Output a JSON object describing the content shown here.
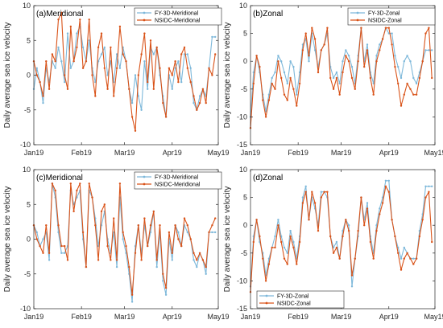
{
  "figure": {
    "ylabel": "Daily average sea ice velocity",
    "x_tick_labels": [
      "Jan19",
      "Feb19",
      "Mar19",
      "Apr19",
      "May19"
    ],
    "colors": {
      "fy3d": "#7DB8DA",
      "nsidc": "#D95319",
      "axis": "#262626"
    }
  },
  "chart_data": [
    {
      "type": "line",
      "title": "(a)Meridional",
      "xlabel": "",
      "ylabel": "Daily average sea ice velocity",
      "xlim": [
        0,
        120
      ],
      "ylim": [
        -10,
        10
      ],
      "yticks": [
        -10,
        -5,
        0,
        5,
        10
      ],
      "xticks": [
        0,
        31,
        59,
        90,
        120
      ],
      "xtick_labels": [
        "Jan19",
        "Feb19",
        "Mar19",
        "Apr19",
        "May19"
      ],
      "legend_position": "top-right",
      "series": [
        {
          "name": "FY-3D-Meridional",
          "color": "#7DB8DA",
          "x": [
            0,
            2,
            4,
            6,
            8,
            10,
            12,
            14,
            16,
            18,
            20,
            22,
            24,
            26,
            28,
            30,
            32,
            34,
            36,
            38,
            40,
            42,
            44,
            46,
            48,
            50,
            52,
            54,
            56,
            58,
            60,
            62,
            64,
            66,
            68,
            70,
            72,
            74,
            76,
            78,
            80,
            82,
            84,
            86,
            88,
            90,
            92,
            94,
            96,
            98,
            100,
            102,
            104,
            106,
            108,
            110,
            112,
            114,
            116,
            118
          ],
          "values": [
            -2,
            1,
            -1,
            -4,
            1,
            -1,
            2,
            1,
            4,
            2,
            -1,
            6,
            1,
            2,
            6,
            7,
            4,
            2,
            5,
            1,
            -1,
            2,
            3,
            4,
            0,
            2,
            -1,
            3,
            1,
            4,
            2,
            -2,
            -4,
            0,
            -3,
            -5,
            2,
            -2,
            4,
            3,
            4,
            0,
            -3,
            -6,
            0,
            -2,
            1,
            2,
            -1,
            3,
            3,
            1,
            -4,
            -5,
            -3,
            -2,
            -3,
            1,
            5.5,
            5.5
          ]
        },
        {
          "name": "NSIDC-Meridional",
          "color": "#D95319",
          "x": [
            0,
            2,
            4,
            6,
            8,
            10,
            12,
            14,
            16,
            18,
            20,
            22,
            24,
            26,
            28,
            30,
            32,
            34,
            36,
            38,
            40,
            42,
            44,
            46,
            48,
            50,
            52,
            54,
            56,
            58,
            60,
            62,
            64,
            66,
            68,
            70,
            72,
            74,
            76,
            78,
            80,
            82,
            84,
            86,
            88,
            90,
            92,
            94,
            96,
            98,
            100,
            102,
            104,
            106,
            108,
            110,
            112,
            114,
            116,
            118
          ],
          "values": [
            2,
            0,
            -1,
            -3,
            2,
            -2,
            3,
            2,
            8,
            9,
            0,
            -2,
            7,
            2,
            4,
            8,
            1,
            2,
            8,
            0,
            -3,
            4,
            6,
            1,
            -2,
            4,
            -3,
            1,
            7,
            3,
            2,
            -2,
            -6,
            -8,
            0,
            3,
            6,
            -1,
            5,
            -2,
            4,
            1,
            -4,
            -6,
            1,
            0,
            2,
            -1,
            3,
            4,
            1,
            -1,
            -3,
            -5,
            -4,
            -2,
            -4,
            1,
            0,
            3
          ]
        }
      ]
    },
    {
      "type": "line",
      "title": "(b)Zonal",
      "xlabel": "",
      "ylabel": "",
      "xlim": [
        0,
        120
      ],
      "ylim": [
        -15,
        10
      ],
      "yticks": [
        -15,
        -10,
        -5,
        0,
        5,
        10
      ],
      "xticks": [
        0,
        31,
        59,
        90,
        120
      ],
      "xtick_labels": [
        "Jan19",
        "Feb19",
        "Mar19",
        "Apr19",
        "May19"
      ],
      "legend_position": "top-right",
      "series": [
        {
          "name": "FY-3D-Zonal",
          "color": "#7DB8DA",
          "x": [
            0,
            2,
            4,
            6,
            8,
            10,
            12,
            14,
            16,
            18,
            20,
            22,
            24,
            26,
            28,
            30,
            32,
            34,
            36,
            38,
            40,
            42,
            44,
            46,
            48,
            50,
            52,
            54,
            56,
            58,
            60,
            62,
            64,
            66,
            68,
            70,
            72,
            74,
            76,
            78,
            80,
            82,
            84,
            86,
            88,
            90,
            92,
            94,
            96,
            98,
            100,
            102,
            104,
            106,
            108,
            110,
            112,
            114,
            116,
            118
          ],
          "values": [
            -10,
            -2,
            1,
            -2,
            -6,
            -9,
            -6,
            -3,
            -2,
            1,
            0,
            -2,
            -4,
            0,
            -1,
            -6,
            -2,
            3,
            4,
            0,
            5,
            2,
            -1,
            2,
            3,
            5,
            -1,
            -3,
            -2,
            -4,
            0,
            2,
            1,
            -1,
            -4,
            1,
            6,
            0,
            3,
            -2,
            -4,
            1,
            3,
            4,
            6,
            5,
            5,
            1,
            -1,
            -3,
            0,
            1,
            0,
            -3,
            -4,
            -2,
            0,
            2,
            2,
            2
          ]
        },
        {
          "name": "NSIDC-Zonal",
          "color": "#D95319",
          "x": [
            0,
            2,
            4,
            6,
            8,
            10,
            12,
            14,
            16,
            18,
            20,
            22,
            24,
            26,
            28,
            30,
            32,
            34,
            36,
            38,
            40,
            42,
            44,
            46,
            48,
            50,
            52,
            54,
            56,
            58,
            60,
            62,
            64,
            66,
            68,
            70,
            72,
            74,
            76,
            78,
            80,
            82,
            84,
            86,
            88,
            90,
            92,
            94,
            96,
            98,
            100,
            102,
            104,
            106,
            108,
            110,
            112,
            114,
            116,
            118
          ],
          "values": [
            -12,
            -4,
            1,
            -1,
            -7,
            -10,
            -7,
            -4,
            -5,
            0,
            -3,
            -6,
            -7,
            -3,
            -5,
            -8,
            -4,
            2,
            5,
            1,
            6,
            4,
            -2,
            2,
            3,
            6,
            -3,
            -5,
            -3,
            -6,
            -2,
            1,
            0,
            -3,
            -5,
            0,
            6,
            -1,
            2,
            -3,
            -6,
            0,
            2,
            4,
            6,
            6,
            3,
            -1,
            -4,
            -8,
            -6,
            -4,
            -5,
            -6,
            -6,
            -3,
            0,
            5,
            6,
            -3
          ]
        }
      ]
    },
    {
      "type": "line",
      "title": "(c)Meridional",
      "xlabel": "",
      "ylabel": "Daily average sea ice velocity",
      "xlim": [
        0,
        120
      ],
      "ylim": [
        -10,
        10
      ],
      "yticks": [
        -10,
        -5,
        0,
        5,
        10
      ],
      "xticks": [
        0,
        31,
        59,
        90,
        120
      ],
      "xtick_labels": [
        "Jan19",
        "Feb19",
        "Mar19",
        "Apr19",
        "May19"
      ],
      "legend_position": "top-right",
      "series": [
        {
          "name": "FY-3D-Meridional",
          "color": "#7DB8DA",
          "x": [
            0,
            2,
            4,
            6,
            8,
            10,
            12,
            14,
            16,
            18,
            20,
            22,
            24,
            26,
            28,
            30,
            32,
            34,
            36,
            38,
            40,
            42,
            44,
            46,
            48,
            50,
            52,
            54,
            56,
            58,
            60,
            62,
            64,
            66,
            68,
            70,
            72,
            74,
            76,
            78,
            80,
            82,
            84,
            86,
            88,
            90,
            92,
            94,
            96,
            98,
            100,
            102,
            104,
            106,
            108,
            110,
            112,
            114,
            116,
            118
          ],
          "values": [
            2,
            1,
            -1,
            0,
            1,
            -3,
            8,
            6,
            1,
            -2,
            -2,
            -1,
            7,
            5,
            6,
            7,
            0,
            -4,
            7,
            6,
            3,
            -1,
            2,
            4,
            0,
            -2,
            1,
            -4,
            6,
            0,
            -2,
            -5,
            -9,
            -1,
            2,
            -2,
            2,
            -1,
            1,
            4,
            -4,
            1,
            -6,
            -8,
            0,
            -3,
            2,
            1,
            -1,
            2,
            1,
            0,
            -3,
            -4,
            -2,
            -3,
            -5,
            1,
            1,
            1
          ]
        },
        {
          "name": "NSIDC-Meridional",
          "color": "#D95319",
          "x": [
            0,
            2,
            4,
            6,
            8,
            10,
            12,
            14,
            16,
            18,
            20,
            22,
            24,
            26,
            28,
            30,
            32,
            34,
            36,
            38,
            40,
            42,
            44,
            46,
            48,
            50,
            52,
            54,
            56,
            58,
            60,
            62,
            64,
            66,
            68,
            70,
            72,
            74,
            76,
            78,
            80,
            82,
            84,
            86,
            88,
            90,
            92,
            94,
            96,
            98,
            100,
            102,
            104,
            106,
            108,
            110,
            112,
            114,
            116,
            118
          ],
          "values": [
            2,
            0,
            -1,
            -2,
            2,
            -2,
            8,
            7,
            2,
            -1,
            -1,
            -3,
            8,
            4,
            7,
            8,
            1,
            -4,
            8,
            6,
            2,
            -3,
            4,
            5,
            -1,
            -3,
            3,
            -3,
            8,
            1,
            -1,
            -4,
            -8,
            -2,
            2,
            -3,
            3,
            -1,
            2,
            4,
            -3,
            2,
            -5,
            -7,
            1,
            -2,
            2,
            0,
            -1,
            3,
            2,
            0,
            -2,
            -3,
            -2,
            -3,
            -4,
            1,
            2,
            3
          ]
        }
      ]
    },
    {
      "type": "line",
      "title": "(d)Zonal",
      "xlabel": "",
      "ylabel": "",
      "xlim": [
        0,
        120
      ],
      "ylim": [
        -15,
        10
      ],
      "yticks": [
        -15,
        -10,
        -5,
        0,
        5,
        10
      ],
      "xticks": [
        0,
        31,
        59,
        90,
        120
      ],
      "xtick_labels": [
        "Jan19",
        "Feb19",
        "Mar19",
        "Apr19",
        "May19"
      ],
      "legend_position": "bottom-left",
      "series": [
        {
          "name": "FY-3D-Zonal",
          "color": "#7DB8DA",
          "x": [
            0,
            2,
            4,
            6,
            8,
            10,
            12,
            14,
            16,
            18,
            20,
            22,
            24,
            26,
            28,
            30,
            32,
            34,
            36,
            38,
            40,
            42,
            44,
            46,
            48,
            50,
            52,
            54,
            56,
            58,
            60,
            62,
            64,
            66,
            68,
            70,
            72,
            74,
            76,
            78,
            80,
            82,
            84,
            86,
            88,
            90,
            92,
            94,
            96,
            98,
            100,
            102,
            104,
            106,
            108,
            110,
            112,
            114,
            116,
            118
          ],
          "values": [
            -11,
            -2,
            1,
            -3,
            -5,
            -9,
            -6,
            -4,
            -2,
            1,
            -2,
            -4,
            -5,
            -1,
            -3,
            -6,
            -2,
            5,
            7,
            1,
            5,
            3,
            0,
            6,
            6,
            5,
            -2,
            -4,
            -3,
            -6,
            -1,
            1,
            0,
            -11,
            -6,
            -2,
            5,
            1,
            4,
            -2,
            -5,
            0,
            3,
            5,
            8,
            8,
            1,
            -2,
            -4,
            -6,
            -4,
            -5,
            -6,
            -6,
            -6,
            -1,
            2,
            7,
            7,
            7
          ]
        },
        {
          "name": "NSIDC-Zonal",
          "color": "#D95319",
          "x": [
            0,
            2,
            4,
            6,
            8,
            10,
            12,
            14,
            16,
            18,
            20,
            22,
            24,
            26,
            28,
            30,
            32,
            34,
            36,
            38,
            40,
            42,
            44,
            46,
            48,
            50,
            52,
            54,
            56,
            58,
            60,
            62,
            64,
            66,
            68,
            70,
            72,
            74,
            76,
            78,
            80,
            82,
            84,
            86,
            88,
            90,
            92,
            94,
            96,
            98,
            100,
            102,
            104,
            106,
            108,
            110,
            112,
            114,
            116,
            118
          ],
          "values": [
            -12,
            -3,
            1,
            -2,
            -6,
            -10,
            -7,
            -4,
            -4,
            0,
            -3,
            -6,
            -7,
            -2,
            -4,
            -7,
            -3,
            4,
            6,
            1,
            6,
            4,
            -1,
            5,
            6,
            6,
            -2,
            -5,
            -4,
            -6,
            -2,
            1,
            -1,
            -9,
            -6,
            -1,
            5,
            0,
            3,
            -3,
            -6,
            -1,
            2,
            4,
            7,
            6,
            1,
            -2,
            -5,
            -8,
            -6,
            -5,
            -6,
            -7,
            -6,
            -2,
            1,
            5,
            6,
            -3
          ]
        }
      ]
    }
  ]
}
